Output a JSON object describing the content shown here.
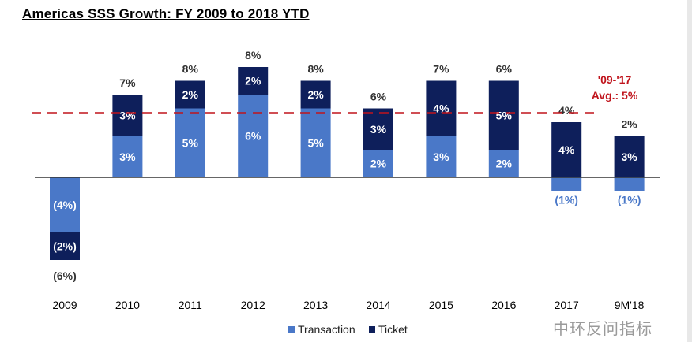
{
  "chart_data": {
    "type": "bar",
    "stacked": true,
    "title": "Americas SSS Growth: FY 2009 to 2018 YTD",
    "categories": [
      "2009",
      "2010",
      "2011",
      "2012",
      "2013",
      "2014",
      "2015",
      "2016",
      "2017",
      "9M'18"
    ],
    "series": [
      {
        "name": "Transaction",
        "color": "#4a78c8",
        "values": [
          -4,
          3,
          5,
          6,
          5,
          2,
          3,
          2,
          -1,
          -1
        ]
      },
      {
        "name": "Ticket",
        "color": "#0e1f5b",
        "values": [
          -2,
          3,
          2,
          2,
          2,
          3,
          4,
          5,
          4,
          3
        ]
      }
    ],
    "totals": [
      -6,
      7,
      8,
      8,
      8,
      6,
      7,
      6,
      4,
      2
    ],
    "average_line": {
      "label_line1": "'09-'17",
      "label_line2": "Avg.: 5%",
      "value": 5,
      "color": "#c0141c",
      "style": "dashed"
    },
    "legend": {
      "position": "bottom",
      "items": [
        "Transaction",
        "Ticket"
      ]
    },
    "label_format": "percent, negatives in parentheses",
    "grid": false
  },
  "watermark": "中环反问指标"
}
